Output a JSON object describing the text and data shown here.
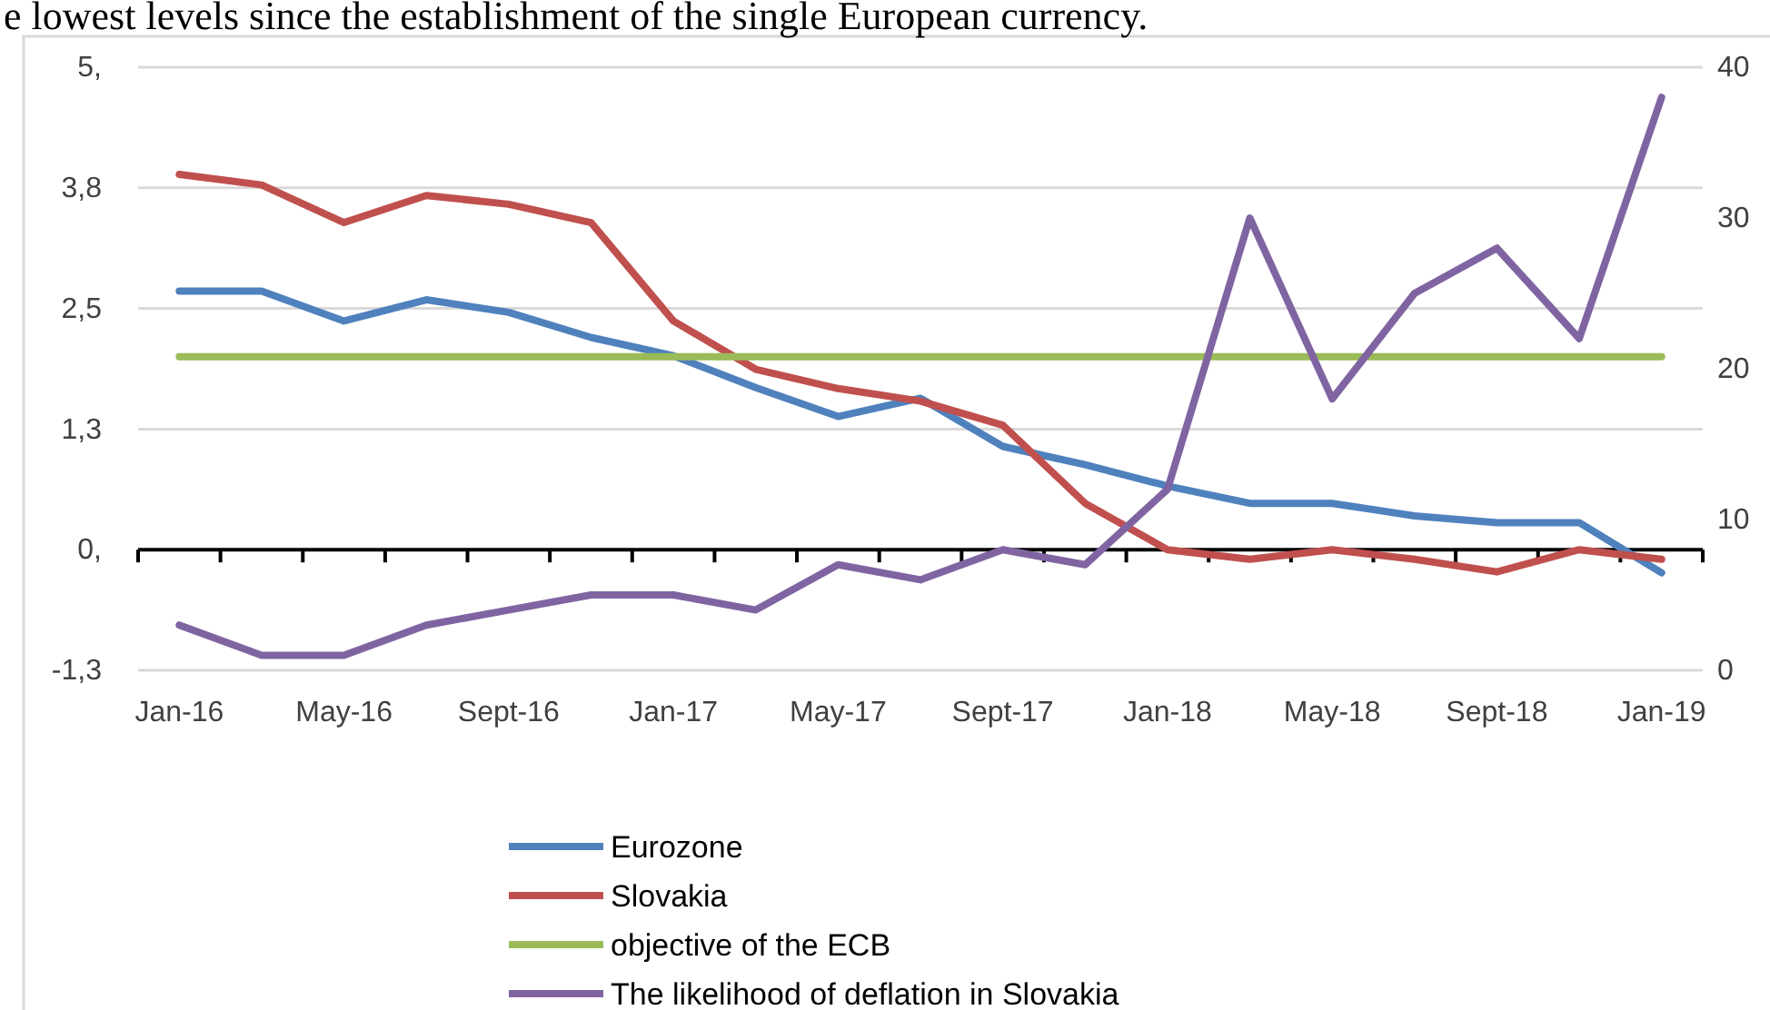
{
  "chart_data": {
    "type": "line",
    "annotations": [
      "e lowest levels since the establishment of the single European currency."
    ],
    "categories": [
      "Jan-16",
      null,
      "May-16",
      null,
      "Sept-16",
      null,
      "Jan-17",
      null,
      "May-17",
      null,
      "Sept-17",
      null,
      "Jan-18",
      null,
      "May-18",
      null,
      "Sept-18",
      null,
      "Jan-19"
    ],
    "series": [
      {
        "name": "Eurozone",
        "color": "#4f81bd",
        "values": [
          2.68,
          2.68,
          2.37,
          2.59,
          2.46,
          2.2,
          2.01,
          1.68,
          1.38,
          1.57,
          1.07,
          0.88,
          0.66,
          0.48,
          0.48,
          0.35,
          0.28,
          0.28,
          -0.24
        ]
      },
      {
        "name": "Slovakia",
        "color": "#c0504d",
        "values": [
          3.89,
          3.78,
          3.39,
          3.67,
          3.58,
          3.39,
          2.37,
          1.87,
          1.67,
          1.54,
          1.29,
          0.48,
          0,
          -0.1,
          0,
          -0.1,
          -0.23,
          0,
          -0.1
        ]
      },
      {
        "name": "objective of the ECB",
        "color": "#9bbb59",
        "values": [
          2,
          2,
          2,
          2,
          2,
          2,
          2,
          2,
          2,
          2,
          2,
          2,
          2,
          2,
          2,
          2,
          2,
          2,
          2
        ]
      },
      {
        "name": "The likelihood of deflation in Slovakia",
        "color": "#8064a2",
        "axis": "y2",
        "values": [
          3,
          1,
          1,
          3,
          4,
          5,
          5,
          4,
          7,
          6,
          8,
          7,
          12,
          30,
          18,
          25,
          28,
          22,
          38
        ]
      }
    ],
    "ylim": [
      -1.25,
      5
    ],
    "yticks": [
      {
        "value": -1.25,
        "label": "-1,3"
      },
      {
        "value": 0,
        "label": "0,"
      },
      {
        "value": 1.25,
        "label": "1,3"
      },
      {
        "value": 2.5,
        "label": "2,5"
      },
      {
        "value": 3.75,
        "label": "3,8"
      },
      {
        "value": 5,
        "label": "5,"
      }
    ],
    "y2lim": [
      0,
      40
    ],
    "y2ticks": [
      0,
      10,
      20,
      30,
      40
    ],
    "grid": "y",
    "legend": "bottom",
    "marker": "none",
    "line_style": "solid"
  }
}
